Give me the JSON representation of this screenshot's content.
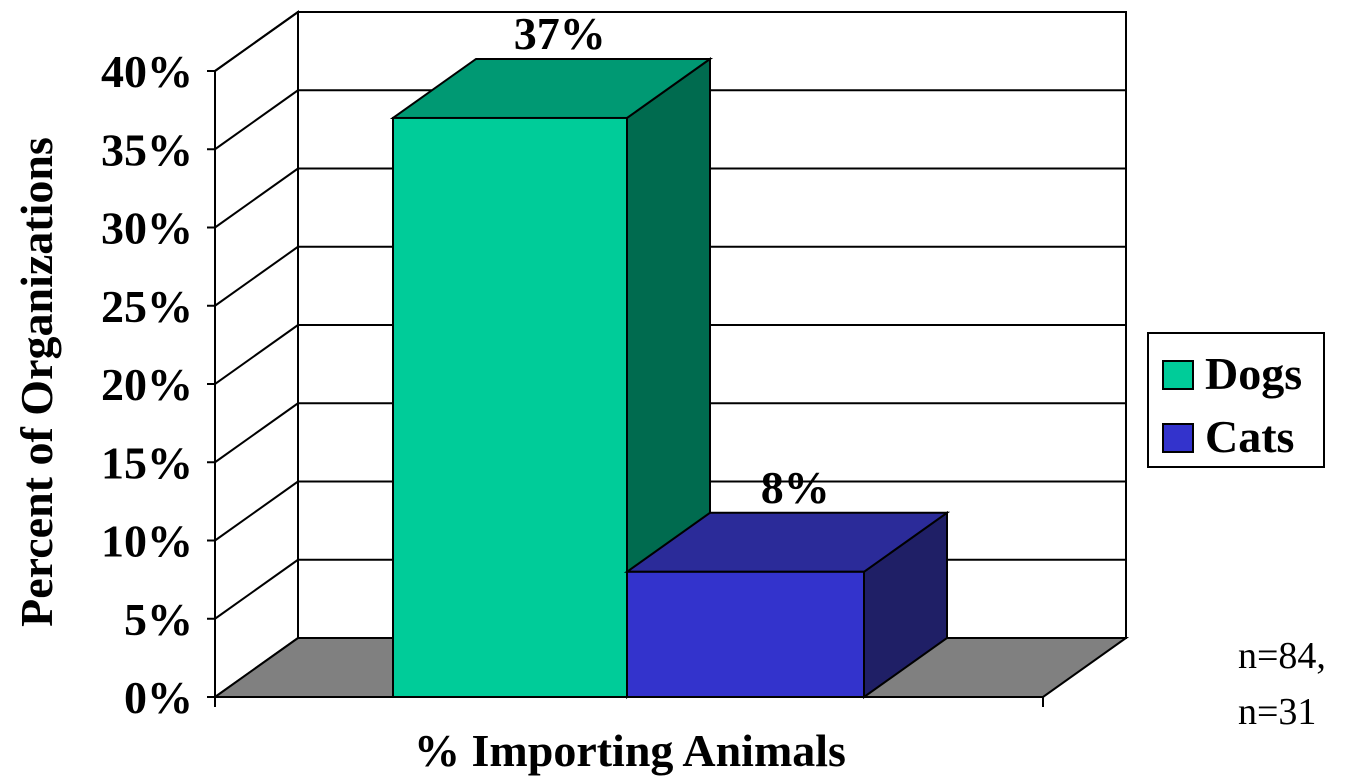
{
  "chart_data": {
    "type": "bar",
    "three_d": true,
    "title": "",
    "xlabel": "% Importing Animals",
    "ylabel": "Percent of Organizations",
    "categories": [
      "% Importing Animals"
    ],
    "series": [
      {
        "name": "Dogs",
        "values": [
          37
        ],
        "label": "37%",
        "color": "#00CC99",
        "side_color": "#006B4F",
        "top_color": "#009973"
      },
      {
        "name": "Cats",
        "values": [
          8
        ],
        "label": "8%",
        "color": "#3333CC",
        "side_color": "#1F1F66",
        "top_color": "#2B2B99"
      }
    ],
    "ylim": [
      0,
      40
    ],
    "yticks": [
      {
        "value": 0,
        "label": "0%"
      },
      {
        "value": 5,
        "label": "5%"
      },
      {
        "value": 10,
        "label": "10%"
      },
      {
        "value": 15,
        "label": "15%"
      },
      {
        "value": 20,
        "label": "20%"
      },
      {
        "value": 25,
        "label": "25%"
      },
      {
        "value": 30,
        "label": "30%"
      },
      {
        "value": 35,
        "label": "35%"
      },
      {
        "value": 40,
        "label": "40%"
      }
    ],
    "grid": true,
    "legend_position": "right",
    "floor_color": "#808080",
    "note_lines": [
      "n=84,",
      "n=31"
    ]
  }
}
